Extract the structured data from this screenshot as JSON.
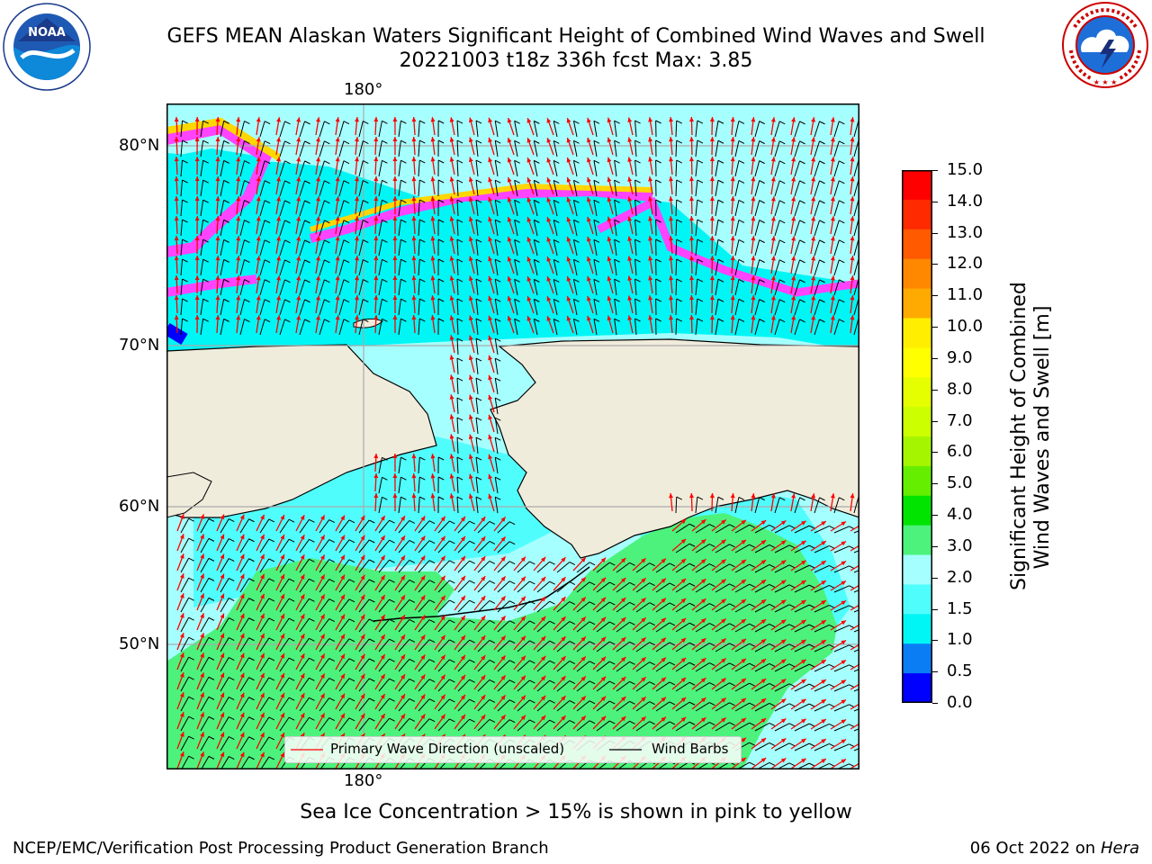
{
  "header": {
    "title_line1": "GEFS MEAN Alaskan Waters Significant Height of Combined Wind Waves and Swell",
    "title_line2": "20221003 t18z 336h fcst   Max: 3.85"
  },
  "logos": {
    "noaa_text": "NOAA",
    "noaa_ring_top": "NATIONAL OCEANIC AND ATMOSPHERIC ADMINISTRATION",
    "noaa_ring_bottom": "U.S. DEPARTMENT OF COMMERCE",
    "nws_ring": "NATIONAL WEATHER SERVICE"
  },
  "map": {
    "lon_label_top": "180°",
    "lon_label_bottom": "180°",
    "lat_labels": [
      "80°N",
      "70°N",
      "60°N",
      "50°N"
    ],
    "colors": {
      "land": "#f0ecdc",
      "green": "#4cf27c",
      "light_cyan": "#a6ffff",
      "cyan": "#50fdfd",
      "bright_cyan": "#00f5f5",
      "blue": "#0a7df5",
      "dark_blue": "#0000ff",
      "ice_pink": "#ff44ff",
      "ice_yellow": "#ffd700",
      "wave_arrow": "#ff0000",
      "wind_barb": "#000000"
    }
  },
  "legend": {
    "wave_label": "Primary Wave Direction (unscaled)",
    "barb_label": "Wind Barbs"
  },
  "colorbar": {
    "label_line1": "Significant Height of Combined",
    "label_line2": "Wind Waves and Swell [m]",
    "ticks": [
      "15.0",
      "14.0",
      "13.0",
      "12.0",
      "11.0",
      "10.0",
      "9.0",
      "8.0",
      "7.0",
      "6.0",
      "5.0",
      "4.0",
      "3.0",
      "2.0",
      "1.5",
      "1.0",
      "0.5",
      "0.0"
    ],
    "bands": [
      "#ff0000",
      "#ff2a00",
      "#ff5a00",
      "#ff8800",
      "#ffaa00",
      "#ffee00",
      "#ffff00",
      "#e6ff00",
      "#ccff00",
      "#a6f500",
      "#66ee00",
      "#00e400",
      "#4cf27c",
      "#a6ffff",
      "#50fdfd",
      "#00f5f5",
      "#0a7df5",
      "#0000ff"
    ]
  },
  "notes": {
    "sea_ice": "Sea Ice Concentration > 15% is shown in pink to yellow"
  },
  "footer": {
    "left": "NCEP/EMC/Verification Post Processing Product Generation Branch",
    "right_prefix": "06 Oct 2022 on ",
    "right_host": "Hera"
  }
}
